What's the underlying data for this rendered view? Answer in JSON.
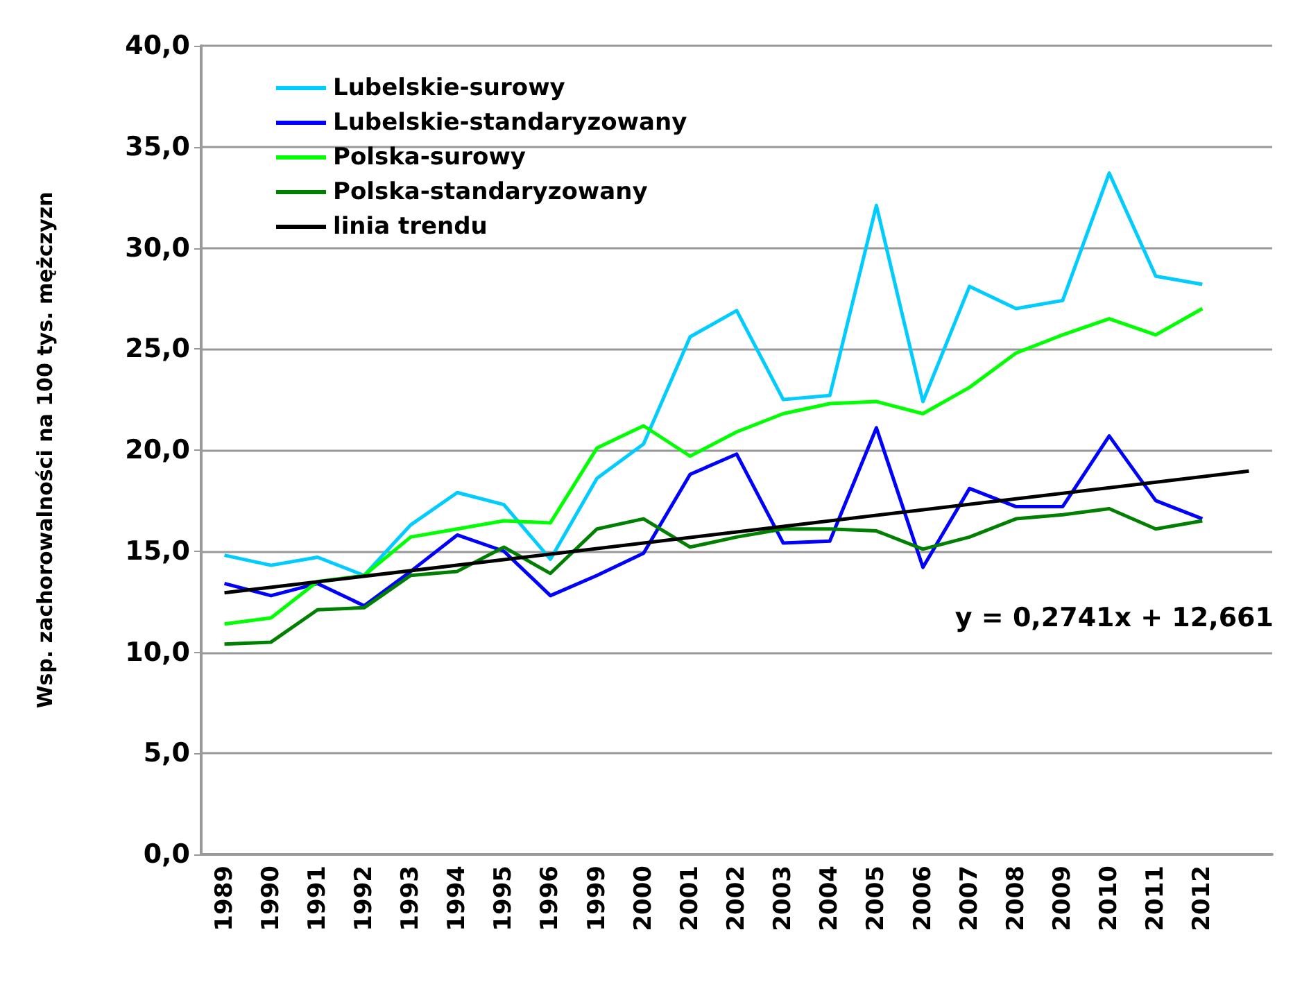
{
  "chart_data": {
    "type": "line",
    "ylabel": "Wsp. zachorowalności na 100 tys. mężczyzn",
    "categories": [
      "1989",
      "1990",
      "1991",
      "1992",
      "1993",
      "1994",
      "1995",
      "1996",
      "1999",
      "2000",
      "2001",
      "2002",
      "2003",
      "2004",
      "2005",
      "2006",
      "2007",
      "2008",
      "2009",
      "2010",
      "2011",
      "2012",
      null
    ],
    "series": [
      {
        "name": "Lubelskie-surowy",
        "color": "#00ccff",
        "values": [
          14.8,
          14.3,
          14.7,
          13.8,
          16.3,
          17.9,
          17.3,
          14.6,
          18.6,
          20.3,
          25.6,
          26.9,
          22.5,
          22.7,
          32.1,
          22.4,
          28.1,
          27.0,
          27.4,
          33.7,
          28.6,
          28.2,
          null
        ]
      },
      {
        "name": "Lubelskie-standaryzowany",
        "color": "#0000ff",
        "values": [
          13.4,
          12.8,
          13.4,
          12.3,
          14.0,
          15.8,
          15.0,
          12.8,
          13.8,
          14.9,
          18.8,
          19.8,
          15.4,
          15.5,
          21.1,
          14.2,
          18.1,
          17.2,
          17.2,
          20.7,
          17.5,
          16.6,
          null
        ]
      },
      {
        "name": "Polska-surowy",
        "color": "#00ff00",
        "values": [
          11.4,
          11.7,
          13.5,
          13.8,
          15.7,
          16.1,
          16.5,
          16.4,
          20.1,
          21.2,
          19.7,
          20.9,
          21.8,
          22.3,
          22.4,
          21.8,
          23.1,
          24.8,
          25.7,
          26.5,
          25.7,
          27.0,
          null
        ]
      },
      {
        "name": "Polska-standaryzowany",
        "color": "#008000",
        "values": [
          10.4,
          10.5,
          12.1,
          12.2,
          13.8,
          14.0,
          15.2,
          13.9,
          16.1,
          16.6,
          15.2,
          15.7,
          16.1,
          16.1,
          16.0,
          15.1,
          15.7,
          16.6,
          16.8,
          17.1,
          16.1,
          16.5,
          null
        ]
      },
      {
        "name": "linia trendu",
        "color": "#000000",
        "values": [
          12.94,
          null,
          null,
          null,
          null,
          null,
          null,
          null,
          null,
          null,
          null,
          null,
          null,
          null,
          null,
          null,
          null,
          null,
          null,
          null,
          null,
          null,
          18.96
        ]
      }
    ],
    "annotations": [
      "y = 0,2741x + 12,661"
    ],
    "ylim": [
      0,
      40
    ],
    "yticks": [
      {
        "value": 0,
        "label": "0,0"
      },
      {
        "value": 5,
        "label": "5,0"
      },
      {
        "value": 10,
        "label": "10,0"
      },
      {
        "value": 15,
        "label": "15,0"
      },
      {
        "value": 20,
        "label": "20,0"
      },
      {
        "value": 25,
        "label": "25,0"
      },
      {
        "value": 30,
        "label": "30,0"
      },
      {
        "value": 35,
        "label": "35,0"
      },
      {
        "value": 40,
        "label": "40,0"
      }
    ],
    "grid": "y",
    "legend": "top left",
    "marker": "none",
    "line_style": "solid"
  }
}
